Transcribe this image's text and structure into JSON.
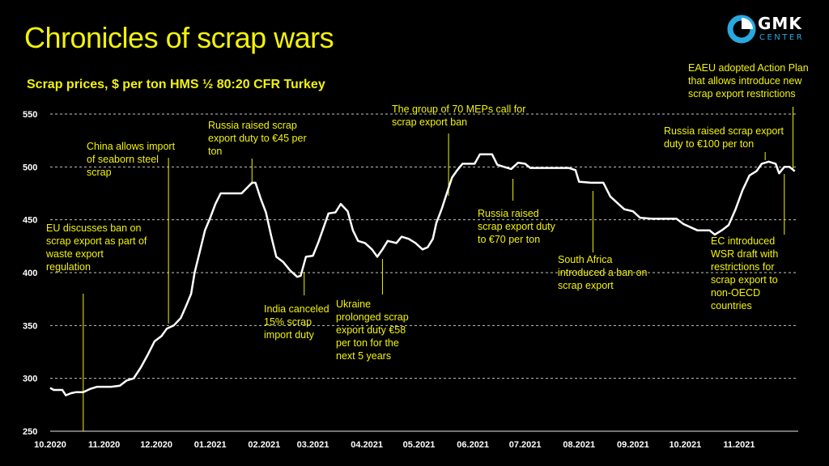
{
  "title": "Chronicles of scrap wars",
  "logo": {
    "name": "GMK",
    "sub": "CENTER",
    "icon": "gmk-logo-icon",
    "accent": "#29a8e0"
  },
  "colors": {
    "text": "#f2f20a",
    "line": "#ffffff",
    "grid": "#e6e6e6",
    "background": "#000000"
  },
  "chart_data": {
    "type": "line",
    "title": "Scrap prices, $ per ton HMS ½ 80:20 CFR Turkey",
    "xlabel": "",
    "ylabel": "",
    "ylim": [
      250,
      550
    ],
    "yticks": [
      250,
      300,
      350,
      400,
      450,
      500,
      550
    ],
    "xlim": [
      "2020-10-01",
      "2021-12-05"
    ],
    "xticks": [
      {
        "label": "10.2020",
        "date": "2020-10-01"
      },
      {
        "label": "11.2020",
        "date": "2020-11-01"
      },
      {
        "label": "12.2020",
        "date": "2020-12-01"
      },
      {
        "label": "01.2021",
        "date": "2021-01-01"
      },
      {
        "label": "02.2021",
        "date": "2021-02-01"
      },
      {
        "label": "03.2021",
        "date": "2021-03-01"
      },
      {
        "label": "04.2021",
        "date": "2021-04-01"
      },
      {
        "label": "05.2021",
        "date": "2021-05-01"
      },
      {
        "label": "06.2021",
        "date": "2021-06-01"
      },
      {
        "label": "07.2021",
        "date": "2021-07-01"
      },
      {
        "label": "08.2021",
        "date": "2021-08-01"
      },
      {
        "label": "09.2021",
        "date": "2021-09-01"
      },
      {
        "label": "10.2021",
        "date": "2021-10-01"
      },
      {
        "label": "11.2021",
        "date": "2021-11-01"
      }
    ],
    "grid": "horizontal-dashed",
    "series": [
      {
        "values": [
          [
            "2020-10-01",
            291
          ],
          [
            "2020-10-03",
            289
          ],
          [
            "2020-10-08",
            289
          ],
          [
            "2020-10-10",
            284
          ],
          [
            "2020-10-13",
            286
          ],
          [
            "2020-10-16",
            287
          ],
          [
            "2020-10-20",
            287
          ],
          [
            "2020-10-24",
            290
          ],
          [
            "2020-10-28",
            292
          ],
          [
            "2020-11-05",
            292
          ],
          [
            "2020-11-10",
            293
          ],
          [
            "2020-11-14",
            298
          ],
          [
            "2020-11-18",
            300
          ],
          [
            "2020-11-22",
            310
          ],
          [
            "2020-11-26",
            322
          ],
          [
            "2020-11-30",
            335
          ],
          [
            "2020-12-04",
            340
          ],
          [
            "2020-12-07",
            347
          ],
          [
            "2020-12-11",
            350
          ],
          [
            "2020-12-15",
            357
          ],
          [
            "2020-12-18",
            368
          ],
          [
            "2020-12-21",
            380
          ],
          [
            "2020-12-23",
            400
          ],
          [
            "2020-12-26",
            420
          ],
          [
            "2020-12-29",
            440
          ],
          [
            "2021-01-01",
            452
          ],
          [
            "2021-01-04",
            465
          ],
          [
            "2021-01-07",
            475
          ],
          [
            "2021-01-11",
            475
          ],
          [
            "2021-01-15",
            475
          ],
          [
            "2021-01-19",
            475
          ],
          [
            "2021-01-22",
            480
          ],
          [
            "2021-01-25",
            485
          ],
          [
            "2021-01-27",
            485
          ],
          [
            "2021-01-30",
            470
          ],
          [
            "2021-02-02",
            457
          ],
          [
            "2021-02-05",
            435
          ],
          [
            "2021-02-08",
            415
          ],
          [
            "2021-02-12",
            410
          ],
          [
            "2021-02-16",
            402
          ],
          [
            "2021-02-20",
            396
          ],
          [
            "2021-02-22",
            397
          ],
          [
            "2021-02-25",
            415
          ],
          [
            "2021-03-01",
            416
          ],
          [
            "2021-03-04",
            428
          ],
          [
            "2021-03-07",
            442
          ],
          [
            "2021-03-10",
            456
          ],
          [
            "2021-03-14",
            457
          ],
          [
            "2021-03-17",
            465
          ],
          [
            "2021-03-21",
            458
          ],
          [
            "2021-03-24",
            440
          ],
          [
            "2021-03-27",
            430
          ],
          [
            "2021-03-31",
            428
          ],
          [
            "2021-04-04",
            422
          ],
          [
            "2021-04-07",
            415
          ],
          [
            "2021-04-10",
            422
          ],
          [
            "2021-04-13",
            430
          ],
          [
            "2021-04-18",
            428
          ],
          [
            "2021-04-21",
            434
          ],
          [
            "2021-04-25",
            432
          ],
          [
            "2021-04-29",
            428
          ],
          [
            "2021-05-03",
            422
          ],
          [
            "2021-05-06",
            424
          ],
          [
            "2021-05-09",
            432
          ],
          [
            "2021-05-11",
            447
          ],
          [
            "2021-05-14",
            460
          ],
          [
            "2021-05-17",
            475
          ],
          [
            "2021-05-20",
            490
          ],
          [
            "2021-05-23",
            497
          ],
          [
            "2021-05-26",
            503
          ],
          [
            "2021-05-30",
            503
          ],
          [
            "2021-06-02",
            503
          ],
          [
            "2021-06-05",
            512
          ],
          [
            "2021-06-12",
            512
          ],
          [
            "2021-06-15",
            502
          ],
          [
            "2021-06-19",
            500
          ],
          [
            "2021-06-23",
            498
          ],
          [
            "2021-06-27",
            504
          ],
          [
            "2021-07-01",
            503
          ],
          [
            "2021-07-04",
            499
          ],
          [
            "2021-07-15",
            499
          ],
          [
            "2021-07-26",
            499
          ],
          [
            "2021-07-30",
            497
          ],
          [
            "2021-08-01",
            486
          ],
          [
            "2021-08-08",
            485
          ],
          [
            "2021-08-15",
            485
          ],
          [
            "2021-08-19",
            472
          ],
          [
            "2021-08-23",
            466
          ],
          [
            "2021-08-27",
            460
          ],
          [
            "2021-09-01",
            458
          ],
          [
            "2021-09-05",
            452
          ],
          [
            "2021-09-12",
            451
          ],
          [
            "2021-09-19",
            451
          ],
          [
            "2021-09-26",
            451
          ],
          [
            "2021-09-30",
            446
          ],
          [
            "2021-10-04",
            443
          ],
          [
            "2021-10-08",
            440
          ],
          [
            "2021-10-15",
            440
          ],
          [
            "2021-10-18",
            436
          ],
          [
            "2021-10-22",
            440
          ],
          [
            "2021-10-26",
            445
          ],
          [
            "2021-10-30",
            460
          ],
          [
            "2021-11-03",
            478
          ],
          [
            "2021-11-07",
            492
          ],
          [
            "2021-11-11",
            496
          ],
          [
            "2021-11-14",
            503
          ],
          [
            "2021-11-18",
            505
          ],
          [
            "2021-11-22",
            503
          ],
          [
            "2021-11-24",
            494
          ],
          [
            "2021-11-27",
            500
          ],
          [
            "2021-11-30",
            500
          ],
          [
            "2021-12-03",
            496
          ]
        ]
      }
    ],
    "annotations": [
      {
        "lines": [
          "EU discusses ban on",
          "scrap export as part of",
          "waste export",
          "regulation"
        ],
        "date": "2020-10-20"
      },
      {
        "lines": [
          "China allows import",
          "of seaborn steel",
          "scrap"
        ],
        "date": "2020-12-08"
      },
      {
        "lines": [
          "Russia raised scrap",
          "export duty to €45 per",
          "ton"
        ],
        "date": "2021-01-25"
      },
      {
        "lines": [
          "India canceled",
          "15% scrap",
          "import duty"
        ],
        "date": "2021-02-24"
      },
      {
        "lines": [
          "Ukraine",
          "prolonged scrap",
          "export duty €58",
          "per ton for the",
          "next 5 years"
        ],
        "date": "2021-04-10"
      },
      {
        "lines": [
          "The group of 70 MEPs call for",
          "scrap export ban"
        ],
        "date": "2021-05-18"
      },
      {
        "lines": [
          "Russia raised",
          "scrap export duty",
          "to €70 per ton"
        ],
        "date": "2021-06-24"
      },
      {
        "lines": [
          "South Africa",
          "introduced a ban on",
          "scrap export"
        ],
        "date": "2021-08-09"
      },
      {
        "lines": [
          "Russia raised scrap export",
          "duty to €100 per ton"
        ],
        "date": "2021-11-16"
      },
      {
        "lines": [
          "EAEU adopted Action Plan",
          "that allows introduce new",
          "scrap export restrictions"
        ],
        "date": "2021-12-02"
      },
      {
        "lines": [
          "EC introduced",
          "WSR draft with",
          "restrictions for",
          "scrap export to",
          "non-OECD",
          "countries"
        ],
        "date": "2021-11-27"
      }
    ]
  }
}
